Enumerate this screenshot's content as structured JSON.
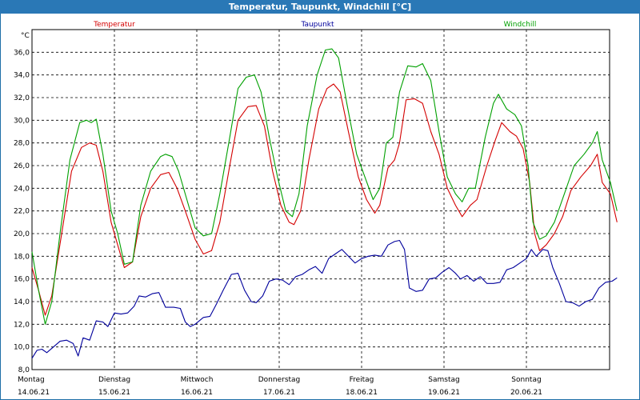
{
  "title": "Temperatur, Taupunkt, Windchill [°C]",
  "chart_data": {
    "type": "line",
    "unit_label": "°C",
    "ylim": [
      8,
      38
    ],
    "yticks": [
      "8,0",
      "10,0",
      "12,0",
      "14,0",
      "16,0",
      "18,0",
      "20,0",
      "22,0",
      "24,0",
      "26,0",
      "28,0",
      "30,0",
      "32,0",
      "34,0",
      "36,0"
    ],
    "x_day_labels": [
      {
        "day": "Montag",
        "date": "14.06.21"
      },
      {
        "day": "Dienstag",
        "date": "15.06.21"
      },
      {
        "day": "Mittwoch",
        "date": "16.06.21"
      },
      {
        "day": "Donnerstag",
        "date": "17.06.21"
      },
      {
        "day": "Freitag",
        "date": "18.06.21"
      },
      {
        "day": "Samstag",
        "date": "19.06.21"
      },
      {
        "day": "Sonntag",
        "date": "20.06.21"
      }
    ],
    "x_days_span": 7.1,
    "grid": true,
    "series": [
      {
        "name": "Temperatur",
        "color": "#d40000",
        "points": [
          [
            0.0,
            17.0
          ],
          [
            0.08,
            15.0
          ],
          [
            0.16,
            12.8
          ],
          [
            0.24,
            14.5
          ],
          [
            0.36,
            20.0
          ],
          [
            0.48,
            25.5
          ],
          [
            0.6,
            27.6
          ],
          [
            0.7,
            28.0
          ],
          [
            0.78,
            27.8
          ],
          [
            0.86,
            25.5
          ],
          [
            0.96,
            21.0
          ],
          [
            1.04,
            19.0
          ],
          [
            1.12,
            17.0
          ],
          [
            1.22,
            17.5
          ],
          [
            1.32,
            21.5
          ],
          [
            1.44,
            24.0
          ],
          [
            1.56,
            25.2
          ],
          [
            1.66,
            25.4
          ],
          [
            1.76,
            24.0
          ],
          [
            1.86,
            22.0
          ],
          [
            1.98,
            19.5
          ],
          [
            2.08,
            18.2
          ],
          [
            2.18,
            18.5
          ],
          [
            2.28,
            21.0
          ],
          [
            2.4,
            26.0
          ],
          [
            2.5,
            30.0
          ],
          [
            2.62,
            31.2
          ],
          [
            2.72,
            31.3
          ],
          [
            2.82,
            29.5
          ],
          [
            2.92,
            25.5
          ],
          [
            3.02,
            22.5
          ],
          [
            3.12,
            21.0
          ],
          [
            3.18,
            20.8
          ],
          [
            3.26,
            22.0
          ],
          [
            3.36,
            26.5
          ],
          [
            3.48,
            31.0
          ],
          [
            3.58,
            32.8
          ],
          [
            3.66,
            33.2
          ],
          [
            3.74,
            32.5
          ],
          [
            3.84,
            29.0
          ],
          [
            3.96,
            25.0
          ],
          [
            4.06,
            23.0
          ],
          [
            4.16,
            21.8
          ],
          [
            4.22,
            22.5
          ],
          [
            4.32,
            25.8
          ],
          [
            4.4,
            26.5
          ],
          [
            4.46,
            28.0
          ],
          [
            4.54,
            31.8
          ],
          [
            4.64,
            31.9
          ],
          [
            4.74,
            31.5
          ],
          [
            4.84,
            29.0
          ],
          [
            4.94,
            27.0
          ],
          [
            5.04,
            24.0
          ],
          [
            5.14,
            22.5
          ],
          [
            5.22,
            21.5
          ],
          [
            5.32,
            22.5
          ],
          [
            5.4,
            23.0
          ],
          [
            5.52,
            26.0
          ],
          [
            5.62,
            28.2
          ],
          [
            5.7,
            29.8
          ],
          [
            5.8,
            29.0
          ],
          [
            5.88,
            28.6
          ],
          [
            5.96,
            27.5
          ],
          [
            6.04,
            24.5
          ],
          [
            6.1,
            20.0
          ],
          [
            6.16,
            18.5
          ],
          [
            6.24,
            19.0
          ],
          [
            6.34,
            20.0
          ],
          [
            6.44,
            21.5
          ],
          [
            6.54,
            23.8
          ],
          [
            6.66,
            25.0
          ],
          [
            6.78,
            26.0
          ],
          [
            6.86,
            27.0
          ],
          [
            6.92,
            24.5
          ],
          [
            7.02,
            23.5
          ],
          [
            7.1,
            21.0
          ]
        ]
      },
      {
        "name": "Taupunkt",
        "color": "#00009c",
        "points": [
          [
            0.0,
            9.0
          ],
          [
            0.06,
            9.7
          ],
          [
            0.12,
            9.8
          ],
          [
            0.18,
            9.5
          ],
          [
            0.26,
            10.0
          ],
          [
            0.34,
            10.5
          ],
          [
            0.42,
            10.6
          ],
          [
            0.5,
            10.3
          ],
          [
            0.56,
            9.2
          ],
          [
            0.62,
            10.8
          ],
          [
            0.7,
            10.6
          ],
          [
            0.78,
            12.3
          ],
          [
            0.86,
            12.2
          ],
          [
            0.92,
            11.8
          ],
          [
            1.0,
            13.0
          ],
          [
            1.08,
            12.9
          ],
          [
            1.16,
            13.0
          ],
          [
            1.24,
            13.6
          ],
          [
            1.3,
            14.5
          ],
          [
            1.38,
            14.4
          ],
          [
            1.46,
            14.7
          ],
          [
            1.54,
            14.8
          ],
          [
            1.62,
            13.5
          ],
          [
            1.72,
            13.5
          ],
          [
            1.8,
            13.4
          ],
          [
            1.86,
            12.2
          ],
          [
            1.92,
            11.8
          ],
          [
            1.98,
            12.0
          ],
          [
            2.08,
            12.6
          ],
          [
            2.16,
            12.7
          ],
          [
            2.24,
            13.8
          ],
          [
            2.32,
            15.0
          ],
          [
            2.42,
            16.4
          ],
          [
            2.5,
            16.5
          ],
          [
            2.58,
            15.0
          ],
          [
            2.66,
            14.0
          ],
          [
            2.72,
            13.9
          ],
          [
            2.8,
            14.5
          ],
          [
            2.88,
            15.8
          ],
          [
            2.96,
            16.0
          ],
          [
            3.04,
            15.9
          ],
          [
            3.12,
            15.5
          ],
          [
            3.2,
            16.2
          ],
          [
            3.28,
            16.4
          ],
          [
            3.36,
            16.8
          ],
          [
            3.44,
            17.1
          ],
          [
            3.52,
            16.5
          ],
          [
            3.6,
            17.8
          ],
          [
            3.68,
            18.2
          ],
          [
            3.76,
            18.6
          ],
          [
            3.84,
            18.0
          ],
          [
            3.92,
            17.4
          ],
          [
            4.0,
            17.8
          ],
          [
            4.08,
            18.0
          ],
          [
            4.16,
            18.1
          ],
          [
            4.24,
            18.0
          ],
          [
            4.32,
            19.0
          ],
          [
            4.4,
            19.3
          ],
          [
            4.46,
            19.4
          ],
          [
            4.52,
            18.6
          ],
          [
            4.58,
            15.2
          ],
          [
            4.66,
            14.9
          ],
          [
            4.74,
            15.0
          ],
          [
            4.82,
            16.0
          ],
          [
            4.9,
            16.1
          ],
          [
            4.98,
            16.6
          ],
          [
            5.06,
            17.0
          ],
          [
            5.14,
            16.5
          ],
          [
            5.2,
            16.0
          ],
          [
            5.28,
            16.3
          ],
          [
            5.36,
            15.8
          ],
          [
            5.44,
            16.2
          ],
          [
            5.52,
            15.6
          ],
          [
            5.6,
            15.6
          ],
          [
            5.68,
            15.7
          ],
          [
            5.76,
            16.8
          ],
          [
            5.84,
            17.0
          ],
          [
            5.92,
            17.4
          ],
          [
            6.0,
            17.8
          ],
          [
            6.06,
            18.6
          ],
          [
            6.12,
            18.0
          ],
          [
            6.2,
            18.6
          ],
          [
            6.26,
            18.5
          ],
          [
            6.32,
            17.0
          ],
          [
            6.4,
            15.6
          ],
          [
            6.48,
            14.0
          ],
          [
            6.56,
            13.9
          ],
          [
            6.64,
            13.6
          ],
          [
            6.72,
            14.0
          ],
          [
            6.8,
            14.2
          ],
          [
            6.88,
            15.2
          ],
          [
            6.96,
            15.7
          ],
          [
            7.04,
            15.8
          ],
          [
            7.1,
            16.1
          ]
        ]
      },
      {
        "name": "Windchill",
        "color": "#00a000",
        "points": [
          [
            0.0,
            18.4
          ],
          [
            0.08,
            15.0
          ],
          [
            0.16,
            12.0
          ],
          [
            0.24,
            14.0
          ],
          [
            0.34,
            20.0
          ],
          [
            0.46,
            26.5
          ],
          [
            0.58,
            29.8
          ],
          [
            0.66,
            30.0
          ],
          [
            0.72,
            29.8
          ],
          [
            0.78,
            30.1
          ],
          [
            0.86,
            27.0
          ],
          [
            0.96,
            22.0
          ],
          [
            1.04,
            20.0
          ],
          [
            1.12,
            17.3
          ],
          [
            1.22,
            17.5
          ],
          [
            1.32,
            22.5
          ],
          [
            1.44,
            25.5
          ],
          [
            1.56,
            26.8
          ],
          [
            1.62,
            27.0
          ],
          [
            1.7,
            26.8
          ],
          [
            1.78,
            25.5
          ],
          [
            1.88,
            23.0
          ],
          [
            1.98,
            20.5
          ],
          [
            2.08,
            19.8
          ],
          [
            2.18,
            20.0
          ],
          [
            2.28,
            23.5
          ],
          [
            2.4,
            28.5
          ],
          [
            2.5,
            32.8
          ],
          [
            2.6,
            33.8
          ],
          [
            2.7,
            34.0
          ],
          [
            2.78,
            32.5
          ],
          [
            2.88,
            28.5
          ],
          [
            2.98,
            25.0
          ],
          [
            3.08,
            22.0
          ],
          [
            3.16,
            21.5
          ],
          [
            3.24,
            23.5
          ],
          [
            3.34,
            29.5
          ],
          [
            3.46,
            34.0
          ],
          [
            3.56,
            36.2
          ],
          [
            3.64,
            36.3
          ],
          [
            3.72,
            35.5
          ],
          [
            3.82,
            31.5
          ],
          [
            3.94,
            27.0
          ],
          [
            4.04,
            25.0
          ],
          [
            4.14,
            23.0
          ],
          [
            4.22,
            24.0
          ],
          [
            4.3,
            28.0
          ],
          [
            4.38,
            28.5
          ],
          [
            4.46,
            32.5
          ],
          [
            4.56,
            34.8
          ],
          [
            4.66,
            34.7
          ],
          [
            4.74,
            35.0
          ],
          [
            4.84,
            33.5
          ],
          [
            4.94,
            29.0
          ],
          [
            5.04,
            25.0
          ],
          [
            5.14,
            23.5
          ],
          [
            5.22,
            22.8
          ],
          [
            5.3,
            24.0
          ],
          [
            5.38,
            24.0
          ],
          [
            5.5,
            28.5
          ],
          [
            5.6,
            31.5
          ],
          [
            5.66,
            32.3
          ],
          [
            5.76,
            31.0
          ],
          [
            5.86,
            30.5
          ],
          [
            5.94,
            29.5
          ],
          [
            6.02,
            26.0
          ],
          [
            6.08,
            21.0
          ],
          [
            6.16,
            19.5
          ],
          [
            6.24,
            19.8
          ],
          [
            6.34,
            21.0
          ],
          [
            6.46,
            23.5
          ],
          [
            6.58,
            26.0
          ],
          [
            6.7,
            27.0
          ],
          [
            6.8,
            28.0
          ],
          [
            6.86,
            29.0
          ],
          [
            6.92,
            26.5
          ],
          [
            7.02,
            24.5
          ],
          [
            7.1,
            22.0
          ]
        ]
      }
    ]
  }
}
